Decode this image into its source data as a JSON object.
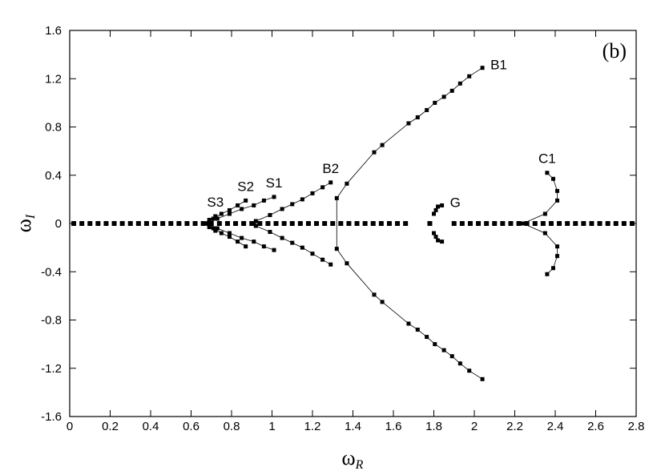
{
  "chart_data": {
    "type": "line",
    "panel_label": "(b)",
    "xlabel": {
      "text": "ω",
      "sub": "R"
    },
    "ylabel": {
      "text": "ω",
      "sub": "I"
    },
    "xlim": [
      0,
      2.8
    ],
    "ylim": [
      -1.6,
      1.6
    ],
    "xticks": [
      0,
      0.2,
      0.4,
      0.6,
      0.8,
      1,
      1.2,
      1.4,
      1.6,
      1.8,
      2,
      2.2,
      2.4,
      2.6,
      2.8
    ],
    "yticks": [
      -1.6,
      -1.2,
      -0.8,
      -0.4,
      0,
      0.4,
      0.8,
      1.2,
      1.6
    ],
    "color": "#000000",
    "series": [
      {
        "name": "B1",
        "x": [
          2.04,
          1.975,
          1.93,
          1.89,
          1.85,
          1.805,
          1.765,
          1.72,
          1.675,
          1.545,
          1.505,
          1.37,
          1.32,
          1.32,
          1.37,
          1.505,
          1.545,
          1.675,
          1.72,
          1.765,
          1.805,
          1.85,
          1.89,
          1.93,
          1.975,
          2.04
        ],
        "y": [
          -1.29,
          -1.22,
          -1.16,
          -1.1,
          -1.05,
          -1.0,
          -0.94,
          -0.88,
          -0.83,
          -0.65,
          -0.59,
          -0.33,
          -0.21,
          0.21,
          0.33,
          0.59,
          0.65,
          0.83,
          0.88,
          0.94,
          1.0,
          1.05,
          1.1,
          1.16,
          1.22,
          1.29
        ]
      },
      {
        "name": "B2",
        "x": [
          1.29,
          1.25,
          1.2,
          1.15,
          1.1,
          1.05,
          0.99,
          0.92,
          0.91,
          0.92,
          0.99,
          1.05,
          1.1,
          1.15,
          1.2,
          1.25,
          1.29
        ],
        "y": [
          -0.34,
          -0.3,
          -0.25,
          -0.2,
          -0.16,
          -0.12,
          -0.07,
          -0.02,
          0,
          0.02,
          0.07,
          0.12,
          0.16,
          0.2,
          0.25,
          0.3,
          0.34
        ]
      },
      {
        "name": "S1",
        "x": [
          1.01,
          0.96,
          0.91,
          0.85,
          0.79,
          0.73,
          0.68,
          0.73,
          0.79,
          0.85,
          0.91,
          0.96,
          1.01
        ],
        "y": [
          -0.22,
          -0.19,
          -0.15,
          -0.12,
          -0.08,
          -0.04,
          0,
          0.04,
          0.08,
          0.12,
          0.15,
          0.19,
          0.22
        ]
      },
      {
        "name": "S2",
        "x": [
          0.87,
          0.83,
          0.79,
          0.75,
          0.71,
          0.68,
          0.71,
          0.75,
          0.79,
          0.83,
          0.87
        ],
        "y": [
          -0.19,
          -0.15,
          -0.11,
          -0.08,
          -0.04,
          0,
          0.04,
          0.08,
          0.11,
          0.15,
          0.19
        ]
      },
      {
        "name": "S3",
        "x": [
          0.72,
          0.69,
          0.66,
          0.69,
          0.72
        ],
        "y": [
          -0.06,
          -0.03,
          0,
          0.03,
          0.06
        ]
      },
      {
        "name": "C1",
        "x": [
          2.36,
          2.39,
          2.41,
          2.41,
          2.35,
          2.24,
          2.35,
          2.41,
          2.41,
          2.39,
          2.36
        ],
        "y": [
          -0.42,
          -0.37,
          -0.27,
          -0.19,
          -0.08,
          0,
          0.08,
          0.19,
          0.27,
          0.37,
          0.42
        ]
      },
      {
        "name": "G",
        "x": [
          1.84,
          1.82,
          1.81,
          1.8,
          null,
          1.8,
          1.81,
          1.82,
          1.84
        ],
        "y": [
          -0.15,
          -0.14,
          -0.11,
          -0.08,
          null,
          0.08,
          0.11,
          0.14,
          0.15
        ]
      },
      {
        "x": [
          0.02,
          0.06,
          0.1,
          0.14,
          0.18,
          0.22,
          0.26,
          0.3,
          0.34,
          0.38,
          0.42,
          0.46,
          0.5,
          0.54,
          0.58,
          0.62,
          0.66,
          0.7,
          0.74,
          0.78,
          0.82,
          0.86,
          0.9,
          0.94,
          0.98,
          1.02,
          1.06,
          1.1,
          1.14,
          1.18,
          1.22,
          1.26,
          1.3,
          1.34,
          1.38,
          1.42,
          1.46,
          1.5,
          1.54,
          1.58,
          1.62,
          1.66,
          1.78,
          1.9,
          1.94,
          1.98,
          2.02,
          2.06,
          2.1,
          2.14,
          2.18,
          2.22,
          2.26,
          2.3,
          2.34,
          2.38,
          2.42,
          2.46,
          2.5,
          2.54,
          2.58,
          2.62,
          2.66,
          2.7,
          2.74,
          2.78
        ],
        "y": [
          0,
          0,
          0,
          0,
          0,
          0,
          0,
          0,
          0,
          0,
          0,
          0,
          0,
          0,
          0,
          0,
          0,
          0,
          0,
          0,
          0,
          0,
          0,
          0,
          0,
          0,
          0,
          0,
          0,
          0,
          0,
          0,
          0,
          0,
          0,
          0,
          0,
          0,
          0,
          0,
          0,
          0,
          0,
          0,
          0,
          0,
          0,
          0,
          0,
          0,
          0,
          0,
          0,
          0,
          0,
          0,
          0,
          0,
          0,
          0,
          0,
          0,
          0,
          0,
          0,
          0
        ]
      }
    ]
  }
}
